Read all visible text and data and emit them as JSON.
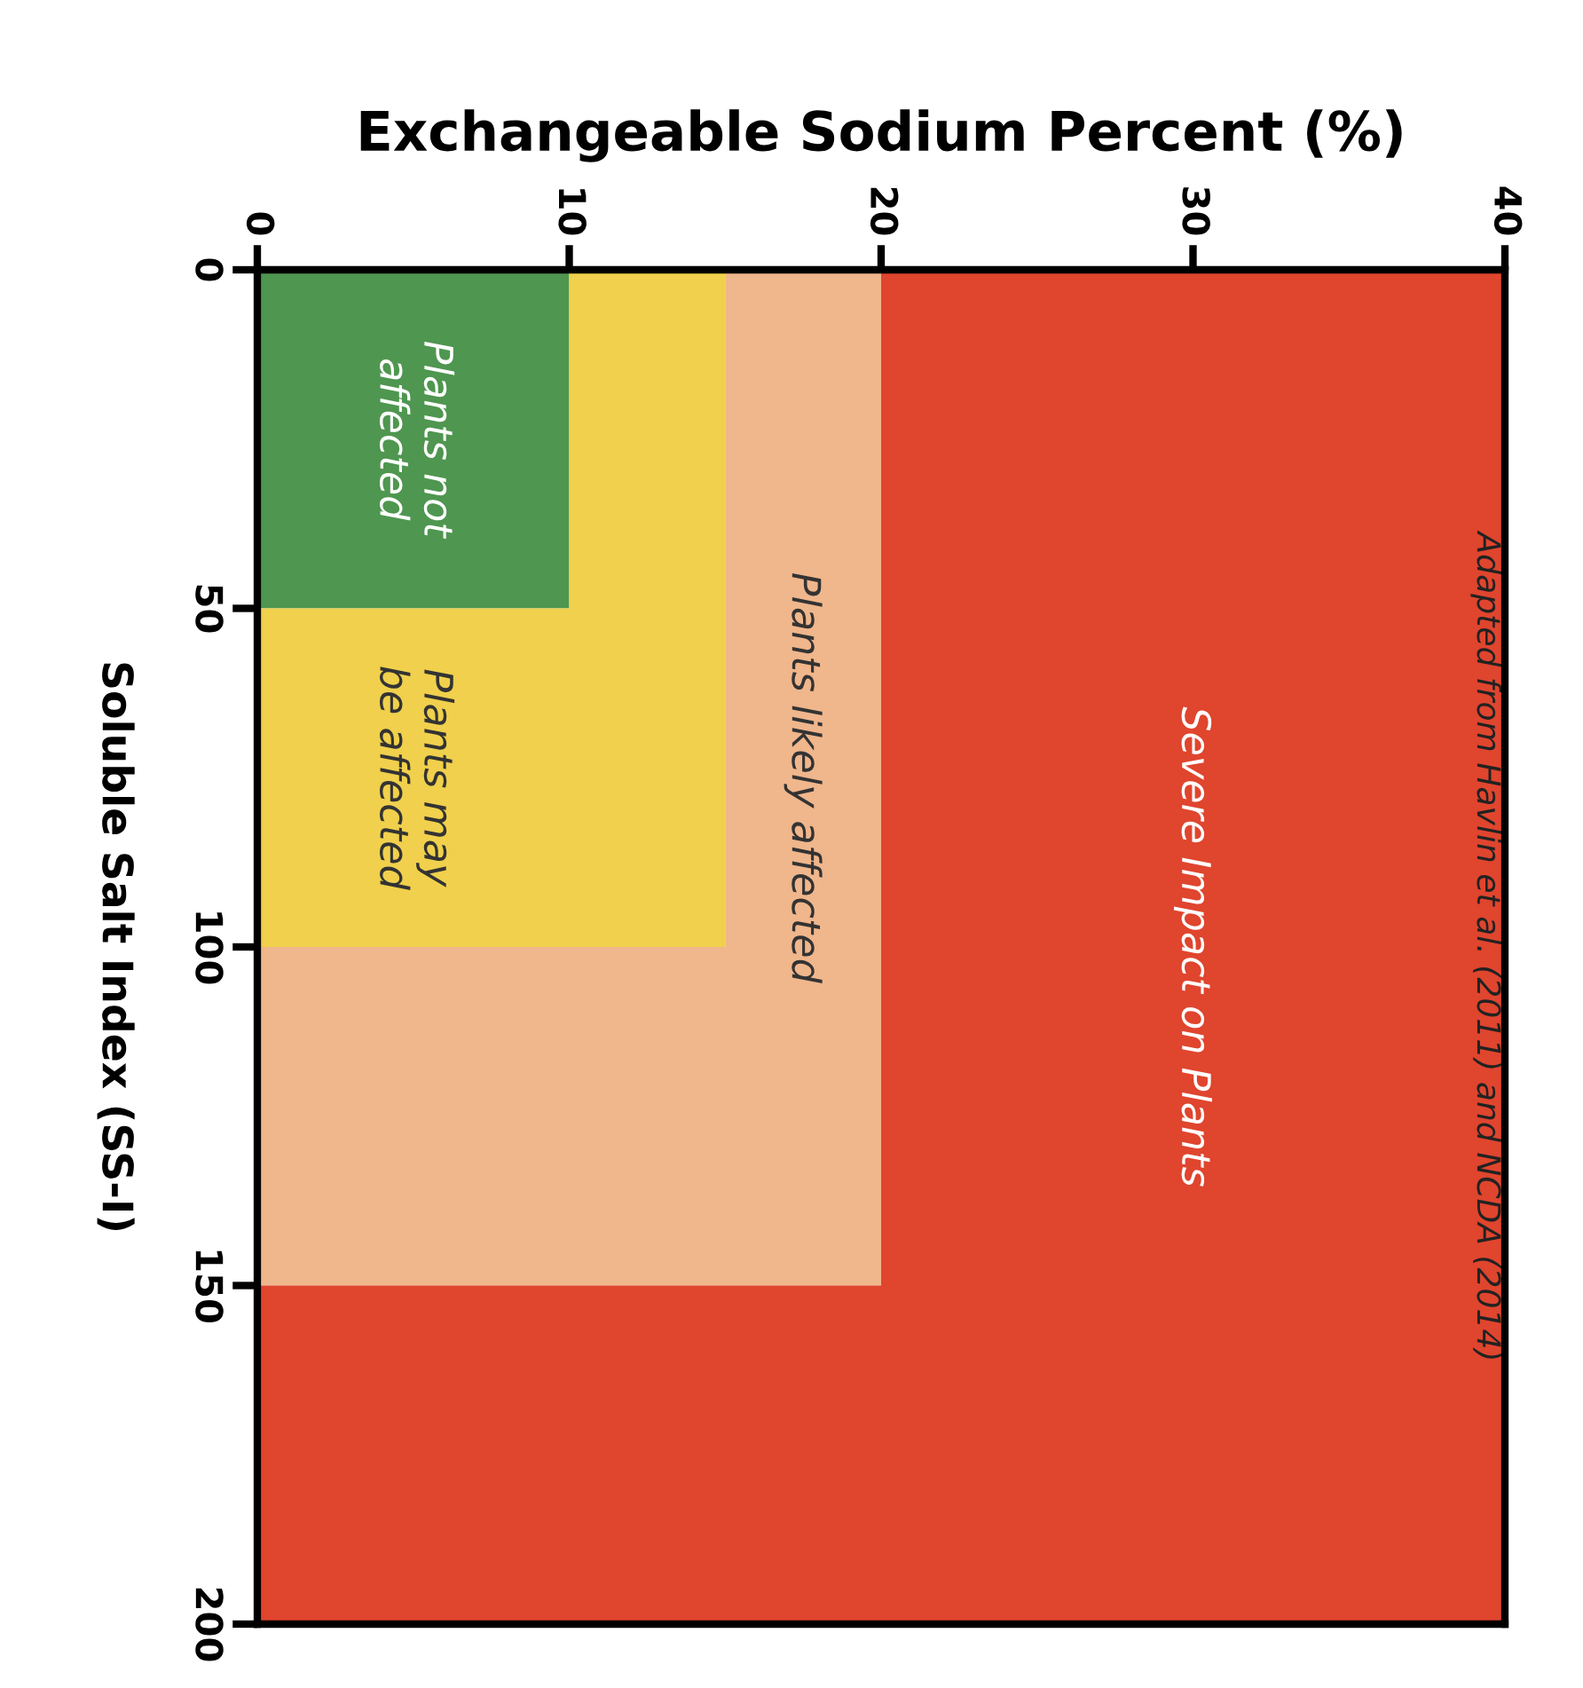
{
  "chart_data": {
    "type": "area",
    "stacked": true,
    "xlabel": "Exchangeable Sodium Percent (%)",
    "ylabel": "Soluble Salt Index (SS-I)",
    "xlim": [
      0,
      40
    ],
    "xticks": [
      0,
      10,
      20,
      30,
      40
    ],
    "ylim": [
      200,
      0
    ],
    "yticks": [
      0,
      50,
      100,
      150,
      200
    ],
    "x": [
      0,
      10,
      10,
      15,
      15,
      20,
      20,
      40
    ],
    "series": [
      {
        "name": "Plants not affected",
        "color": "#4f9650",
        "values": [
          50,
          50,
          0,
          0,
          0,
          0,
          0,
          0
        ]
      },
      {
        "name": "Plants may be affected",
        "color": "#f0d04c",
        "values": [
          50,
          50,
          100,
          100,
          0,
          0,
          0,
          0
        ]
      },
      {
        "name": "Plants likely affected",
        "color": "#f0b68c",
        "values": [
          50,
          50,
          50,
          50,
          150,
          150,
          0,
          0
        ]
      },
      {
        "name": "Severe Impact on Plants",
        "color": "#e0452e",
        "values": [
          50,
          50,
          50,
          50,
          50,
          50,
          200,
          200
        ]
      }
    ],
    "annotations": [
      "Adapted from Havlin et al. (2011) and NCDA (2014)"
    ],
    "grid": false,
    "legend": false
  }
}
